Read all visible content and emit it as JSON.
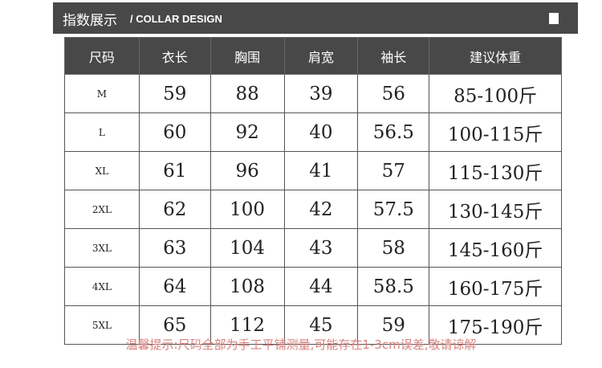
{
  "banner": {
    "title": "指数展示",
    "subtitle": "/ COLLAR DESIGN"
  },
  "table": {
    "headers": [
      "尺码",
      "衣长",
      "胸围",
      "肩宽",
      "袖长",
      "建议体重"
    ],
    "rows": [
      [
        "M",
        "59",
        "88",
        "39",
        "56",
        "85-100斤"
      ],
      [
        "L",
        "60",
        "92",
        "40",
        "56.5",
        "100-115斤"
      ],
      [
        "XL",
        "61",
        "96",
        "41",
        "57",
        "115-130斤"
      ],
      [
        "2XL",
        "62",
        "100",
        "42",
        "57.5",
        "130-145斤"
      ],
      [
        "3XL",
        "63",
        "104",
        "43",
        "58",
        "145-160斤"
      ],
      [
        "4XL",
        "64",
        "108",
        "44",
        "58.5",
        "160-175斤"
      ],
      [
        "5XL",
        "65",
        "112",
        "45",
        "59",
        "175-190斤"
      ]
    ]
  },
  "note": "温馨提示:尺码全部为手工平铺测量,可能存在1-3cm误差,敬请谅解"
}
